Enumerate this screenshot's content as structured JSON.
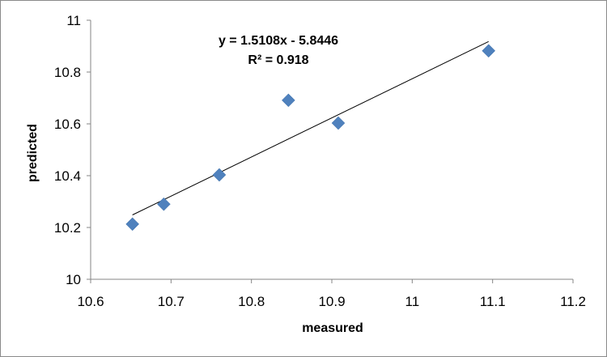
{
  "chart_data": {
    "type": "scatter",
    "xlabel": "measured",
    "ylabel": "predicted",
    "xlim": [
      10.6,
      11.2
    ],
    "ylim": [
      10,
      11
    ],
    "xticks": [
      "10.6",
      "10.7",
      "10.8",
      "10.9",
      "11",
      "11.1",
      "11.2"
    ],
    "yticks": [
      "10",
      "10.2",
      "10.4",
      "10.6",
      "10.8",
      "11"
    ],
    "grid": false,
    "series": [
      {
        "marker": "diamond",
        "color": "#4f81bd",
        "points": [
          {
            "x": 10.652,
            "y": 10.213
          },
          {
            "x": 10.691,
            "y": 10.29
          },
          {
            "x": 10.76,
            "y": 10.403
          },
          {
            "x": 10.846,
            "y": 10.691
          },
          {
            "x": 10.908,
            "y": 10.603
          },
          {
            "x": 11.095,
            "y": 10.882
          }
        ]
      }
    ],
    "trendline": {
      "type": "linear",
      "slope": 1.5108,
      "intercept": -5.8446,
      "x_range": [
        10.652,
        11.095
      ],
      "color": "#000000"
    },
    "annotations": {
      "equation": "y = 1.5108x - 5.8446",
      "r_squared": "R² = 0.918"
    }
  }
}
